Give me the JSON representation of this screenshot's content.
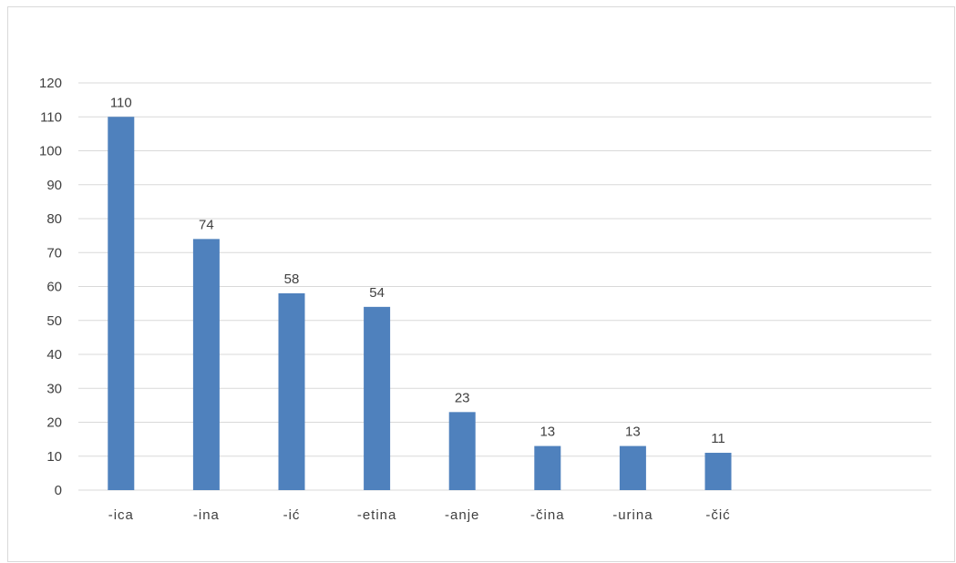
{
  "chart_data": {
    "type": "bar",
    "categories": [
      "-ica",
      "-ina",
      "-ić",
      "-etina",
      "-anje",
      "-čina",
      "-urina",
      "-čić"
    ],
    "values": [
      110,
      74,
      58,
      54,
      23,
      13,
      13,
      11
    ],
    "title": "",
    "xlabel": "",
    "ylabel": "",
    "ylim": [
      0,
      120
    ],
    "yticks": [
      0,
      10,
      20,
      30,
      40,
      50,
      60,
      70,
      80,
      90,
      100,
      110,
      120
    ],
    "grid": true,
    "data_labels": true,
    "colors": {
      "bar": "#4f81bd",
      "grid": "#d9d9d9",
      "text": "#404040"
    }
  }
}
